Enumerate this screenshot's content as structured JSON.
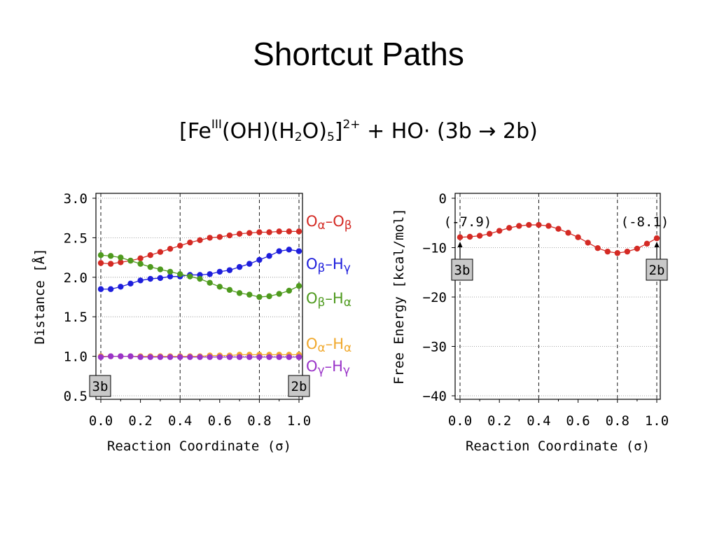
{
  "slide": {
    "title": "Shortcut Paths",
    "reaction": {
      "open": "[Fe",
      "ox": "III",
      "mid": "(OH)(H",
      "sub1": "2",
      "mid2": "O)",
      "sub2": "5",
      "close": "]",
      "charge": "2+",
      "rest": " + HO·  (3b → 2b)"
    }
  },
  "chart_data": [
    {
      "type": "line",
      "title": "",
      "xlabel": "Reaction Coordinate (σ)",
      "ylabel": "Distance [Å]",
      "xlim": [
        0.0,
        1.0
      ],
      "ylim": [
        0.5,
        3.0
      ],
      "xticks": [
        "0.0",
        "0.2",
        "0.4",
        "0.6",
        "0.8",
        "1.0"
      ],
      "yticks": [
        "0.5",
        "1.0",
        "1.5",
        "2.0",
        "2.5",
        "3.0"
      ],
      "ytick_values": [
        0.5,
        1.0,
        1.5,
        2.0,
        2.5,
        3.0
      ],
      "xtick_values": [
        0.0,
        0.2,
        0.4,
        0.6,
        0.8,
        1.0
      ],
      "vlines": [
        0.0,
        0.4,
        0.8,
        1.0
      ],
      "x": [
        0.0,
        0.05,
        0.1,
        0.15,
        0.2,
        0.25,
        0.3,
        0.35,
        0.4,
        0.45,
        0.5,
        0.55,
        0.6,
        0.65,
        0.7,
        0.75,
        0.8,
        0.85,
        0.9,
        0.95,
        1.0
      ],
      "series": [
        {
          "name": "Oα–Oβ",
          "color": "#d42a24",
          "values": [
            2.18,
            2.17,
            2.19,
            2.21,
            2.24,
            2.28,
            2.32,
            2.36,
            2.4,
            2.44,
            2.47,
            2.5,
            2.51,
            2.53,
            2.55,
            2.56,
            2.57,
            2.57,
            2.58,
            2.58,
            2.58
          ]
        },
        {
          "name": "Oβ–Hγ",
          "color": "#1e1edc",
          "values": [
            1.85,
            1.85,
            1.88,
            1.92,
            1.96,
            1.98,
            1.99,
            2.01,
            2.01,
            2.03,
            2.03,
            2.04,
            2.07,
            2.09,
            2.13,
            2.17,
            2.22,
            2.27,
            2.33,
            2.35,
            2.33
          ]
        },
        {
          "name": "Oβ–Hα",
          "color": "#4e9a1e",
          "values": [
            2.28,
            2.27,
            2.25,
            2.21,
            2.17,
            2.13,
            2.1,
            2.07,
            2.04,
            2.01,
            1.98,
            1.93,
            1.88,
            1.84,
            1.8,
            1.78,
            1.75,
            1.76,
            1.79,
            1.83,
            1.89
          ]
        },
        {
          "name": "Oα–Hα",
          "color": "#f0a82c",
          "values": [
            1.0,
            1.0,
            1.0,
            1.0,
            1.0,
            1.0,
            1.0,
            1.0,
            1.0,
            1.0,
            1.0,
            1.01,
            1.01,
            1.01,
            1.02,
            1.02,
            1.02,
            1.02,
            1.02,
            1.02,
            1.02
          ]
        },
        {
          "name": "Oγ–Hγ",
          "color": "#9a34c8",
          "values": [
            0.99,
            1.0,
            1.0,
            1.0,
            0.99,
            0.99,
            0.99,
            0.99,
            0.99,
            0.99,
            0.99,
            0.99,
            0.99,
            0.99,
            0.99,
            0.99,
            0.99,
            0.99,
            0.99,
            0.99,
            0.99
          ]
        }
      ],
      "labels": [
        {
          "text": "3b",
          "at_x": 0.0
        },
        {
          "text": "2b",
          "at_x": 1.0
        }
      ]
    },
    {
      "type": "line",
      "title": "",
      "xlabel": "Reaction Coordinate (σ)",
      "ylabel": "Free Energy [kcal/mol]",
      "xlim": [
        0.0,
        1.0
      ],
      "ylim": [
        -40,
        0
      ],
      "xticks": [
        "0.0",
        "0.2",
        "0.4",
        "0.6",
        "0.8",
        "1.0"
      ],
      "yticks": [
        "−40",
        "−30",
        "−20",
        "−10",
        "0"
      ],
      "ytick_values": [
        -40,
        -30,
        -20,
        -10,
        0
      ],
      "xtick_values": [
        0.0,
        0.2,
        0.4,
        0.6,
        0.8,
        1.0
      ],
      "vlines": [
        0.0,
        0.4,
        0.8,
        1.0
      ],
      "x": [
        0.0,
        0.05,
        0.1,
        0.15,
        0.2,
        0.25,
        0.3,
        0.35,
        0.4,
        0.45,
        0.5,
        0.55,
        0.6,
        0.65,
        0.7,
        0.75,
        0.8,
        0.85,
        0.9,
        0.95,
        1.0
      ],
      "series": [
        {
          "name": "Free Energy",
          "color": "#d42a24",
          "values": [
            -7.9,
            -7.8,
            -7.6,
            -7.2,
            -6.6,
            -6.0,
            -5.6,
            -5.4,
            -5.4,
            -5.6,
            -6.2,
            -7.0,
            -7.9,
            -9.0,
            -10.1,
            -10.8,
            -11.1,
            -10.8,
            -10.2,
            -9.2,
            -8.1
          ]
        }
      ],
      "endpoint_values": [
        {
          "text": "(-7.9)",
          "at_x": 0.0
        },
        {
          "text": "(-8.1)",
          "at_x": 1.0
        }
      ],
      "labels": [
        {
          "text": "3b",
          "at_x": 0.0
        },
        {
          "text": "2b",
          "at_x": 1.0
        }
      ]
    }
  ]
}
